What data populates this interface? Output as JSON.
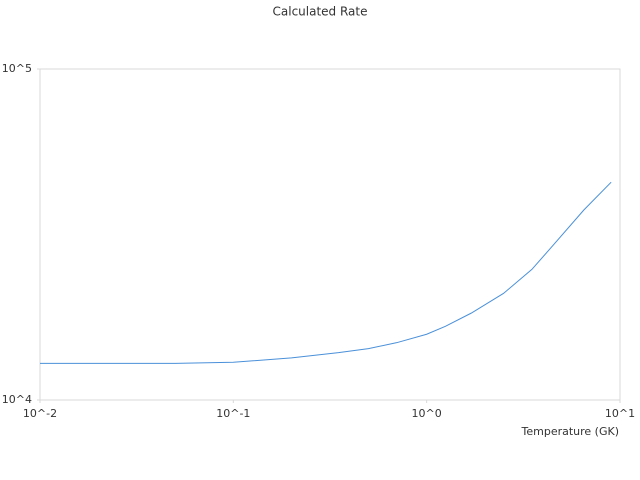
{
  "chart_data": {
    "type": "line",
    "title": "Calculated Rate",
    "x_label": "Temperature (GK)",
    "x": [
      0.01,
      0.05,
      0.1,
      0.2,
      0.35,
      0.5,
      0.7,
      1,
      1.25,
      1.7,
      2.5,
      3.5,
      4.5,
      6.5,
      9
    ],
    "series": [
      {
        "color": "#4a90d9",
        "values": [
          12900,
          12900,
          13000,
          13400,
          13900,
          14300,
          14900,
          15800,
          16700,
          18300,
          21000,
          24800,
          29300,
          37500,
          45500
        ]
      }
    ],
    "log_x": true,
    "log_y": true,
    "xlim": [
      0.01,
      10
    ],
    "ylim": [
      10000,
      100000
    ],
    "xticks": [
      {
        "value": 0.01,
        "label": "10^-2"
      },
      {
        "value": 0.1,
        "label": "10^-1"
      },
      {
        "value": 1,
        "label": "10^0"
      },
      {
        "value": 10,
        "label": "10^1"
      }
    ],
    "yticks": [
      {
        "value": 10000,
        "label": "10^4"
      },
      {
        "value": 100000,
        "label": "10^5"
      }
    ],
    "grid": false
  }
}
